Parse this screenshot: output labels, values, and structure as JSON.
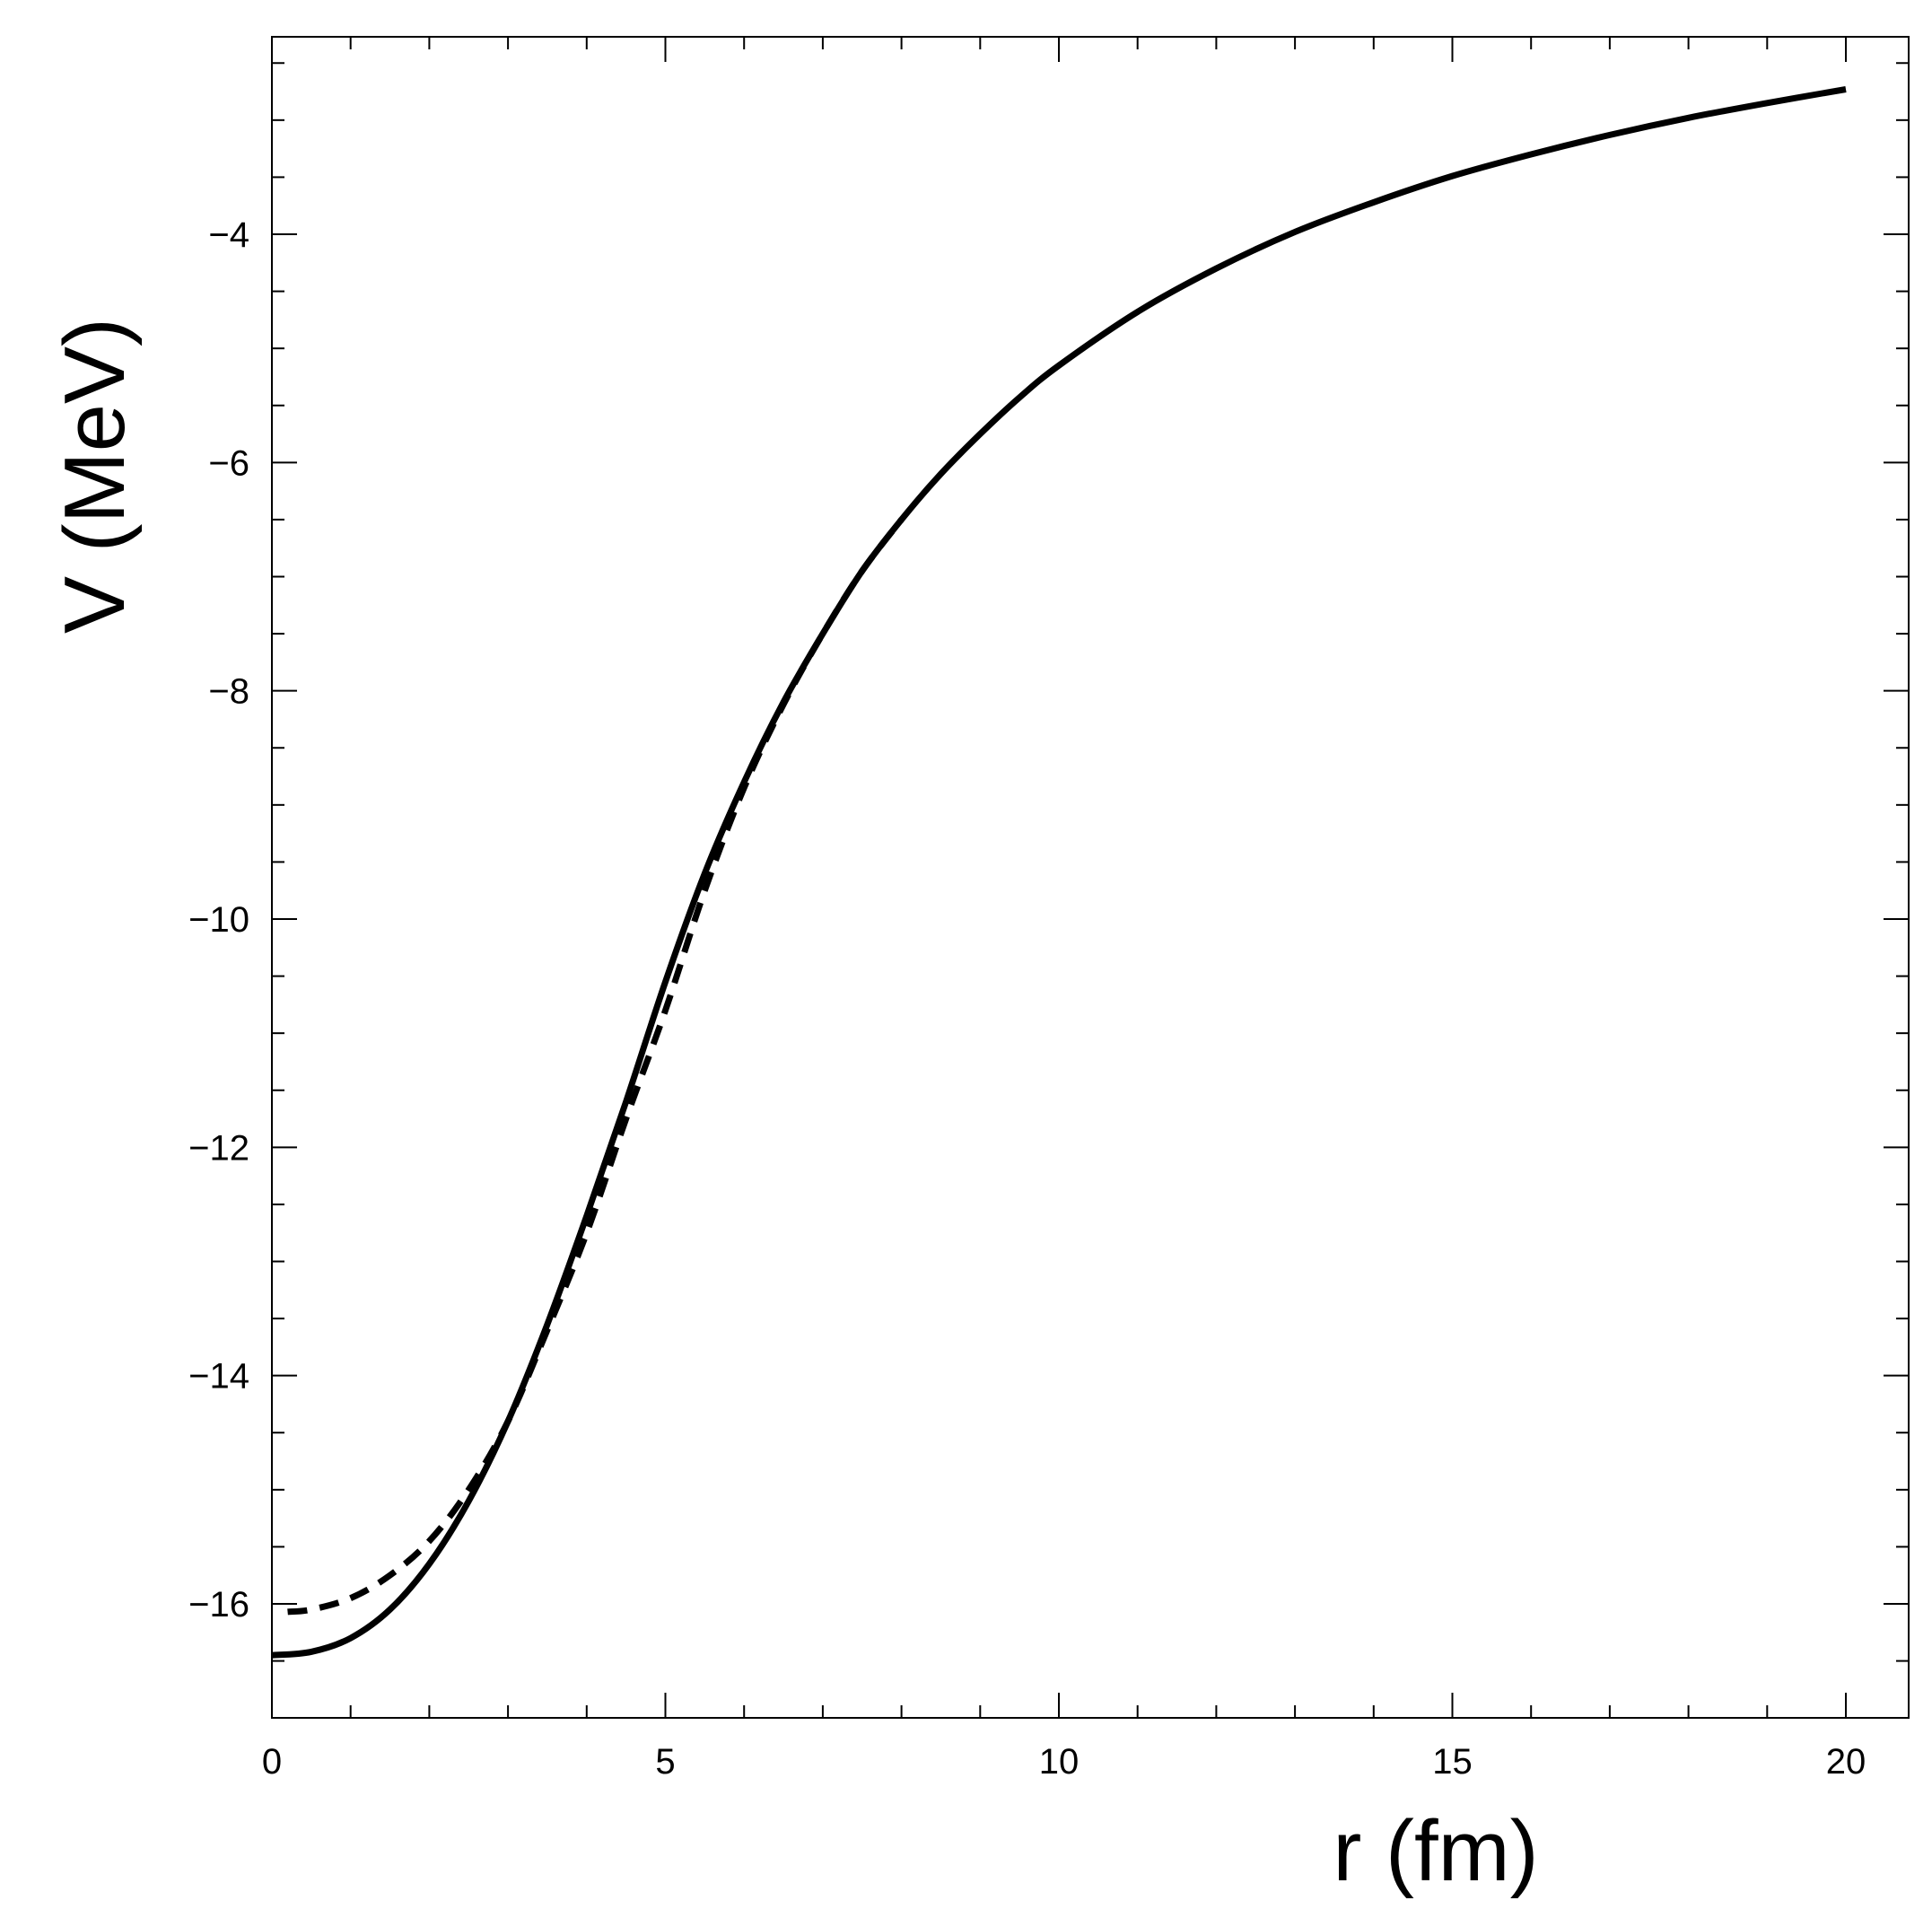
{
  "chart_data": {
    "type": "line",
    "xlabel": "r (fm)",
    "ylabel": "V (MeV)",
    "xlim": [
      0,
      20.8
    ],
    "ylim": [
      -17.2,
      -2.3
    ],
    "x_ticks": [
      0,
      5,
      10,
      15,
      20
    ],
    "x_tick_labels": [
      "0",
      "5",
      "10",
      "15",
      "20"
    ],
    "y_ticks": [
      -16,
      -14,
      -12,
      -10,
      -8,
      -6,
      -4
    ],
    "y_tick_labels": [
      "−16",
      "−14",
      "−12",
      "−10",
      "−8",
      "−6",
      "−4"
    ],
    "minor_y_step": 0.5,
    "minor_x_step": 1,
    "grid": false,
    "series": [
      {
        "style": "solid",
        "color": "#000000",
        "x": [
          0,
          0.5,
          1,
          1.5,
          2,
          2.5,
          3,
          3.5,
          4,
          4.5,
          5,
          5.5,
          6,
          6.5,
          7,
          7.5,
          8,
          8.5,
          9,
          9.5,
          10,
          11,
          12,
          13,
          14,
          15,
          16,
          17,
          18,
          19,
          20
        ],
        "y": [
          -16.45,
          -16.42,
          -16.3,
          -16.05,
          -15.65,
          -15.1,
          -14.4,
          -13.55,
          -12.6,
          -11.6,
          -10.55,
          -9.6,
          -8.8,
          -8.1,
          -7.5,
          -6.95,
          -6.5,
          -6.1,
          -5.75,
          -5.43,
          -5.15,
          -4.68,
          -4.3,
          -3.98,
          -3.72,
          -3.49,
          -3.3,
          -3.13,
          -2.98,
          -2.85,
          -2.73
        ]
      },
      {
        "style": "dashed",
        "color": "#000000",
        "x": [
          0.2,
          0.5,
          1,
          1.5,
          2,
          2.5,
          3,
          3.5,
          4,
          4.5,
          5,
          5.5,
          6,
          6.5,
          7,
          7.5,
          8
        ],
        "y": [
          -16.07,
          -16.05,
          -15.95,
          -15.75,
          -15.45,
          -15.0,
          -14.4,
          -13.6,
          -12.75,
          -11.75,
          -10.8,
          -9.75,
          -8.85,
          -8.12,
          -7.5,
          -6.95,
          -6.5
        ]
      }
    ]
  }
}
